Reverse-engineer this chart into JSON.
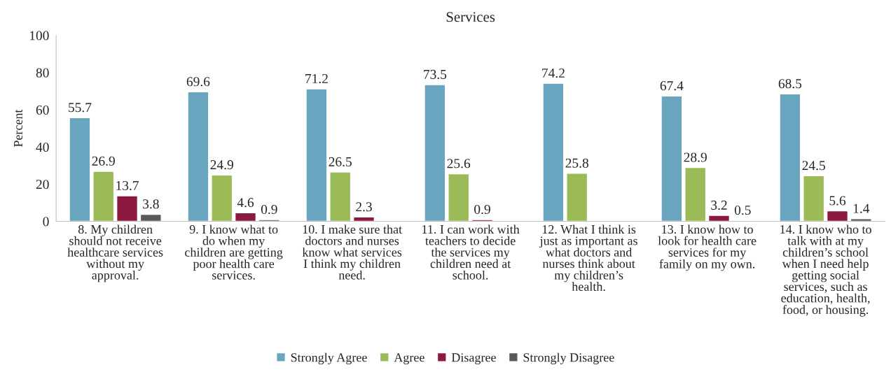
{
  "chart_data": {
    "type": "bar",
    "title": "Services",
    "ylabel": "Percent",
    "categories": [
      "8. My children\nshould not receive\nhealthcare services\nwithout my\napproval.",
      "9. I know what to\ndo when my\nchildren are getting\npoor health care\nservices.",
      "10. I make sure that\ndoctors and nurses\nknow what services\nI think my children\nneed.",
      "11. I can work with\nteachers to decide\nthe services my\nchildren need at\nschool.",
      "12. What I think is\njust as important as\nwhat doctors and\nnurses think about\nmy children’s\nhealth.",
      "13. I know how to\nlook for health care\nservices for my\nfamily on my own.",
      "14. I know who to\ntalk with at my\nchildren’s school\nwhen I need help\ngetting social\nservices, such as\neducation, health,\nfood, or housing."
    ],
    "series": [
      {
        "name": "Strongly Agree",
        "color": "#6aa5c0",
        "values": [
          55.7,
          69.6,
          71.2,
          73.5,
          74.2,
          67.4,
          68.5
        ]
      },
      {
        "name": "Agree",
        "color": "#9bbb59",
        "values": [
          26.9,
          24.9,
          26.5,
          25.6,
          25.8,
          28.9,
          24.5
        ]
      },
      {
        "name": "Disagree",
        "color": "#8b1a3e",
        "values": [
          13.7,
          4.6,
          2.3,
          0.9,
          null,
          3.2,
          5.6
        ]
      },
      {
        "name": "Strongly Disagree",
        "color": "#595959",
        "values": [
          3.8,
          0.9,
          null,
          null,
          null,
          0.5,
          1.4
        ]
      }
    ],
    "ylim": [
      0,
      100
    ],
    "yticks": [
      0,
      20,
      40,
      60,
      80,
      100
    ],
    "grid": false,
    "legend": "bottom",
    "data_labels": true
  }
}
